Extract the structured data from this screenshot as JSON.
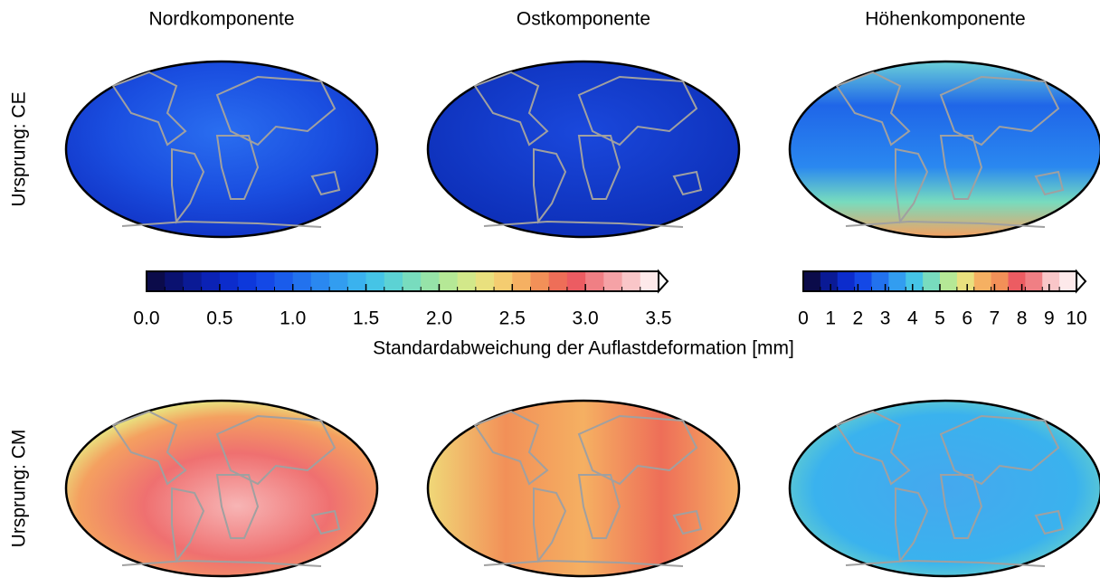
{
  "columns": [
    "Nordkomponente",
    "Ostkomponente",
    "Höhenkomponente"
  ],
  "rows": [
    "Ursprung: CE",
    "Ursprung: CM"
  ],
  "colorbars": [
    {
      "lim": [
        0,
        3.5
      ],
      "ticks": [
        {
          "value": 0,
          "label": "0.0"
        },
        0.5,
        {
          "value": 1,
          "label": "1.0"
        },
        1.5,
        {
          "value": 2,
          "label": "2.0"
        },
        2.5,
        {
          "value": 3,
          "label": "3.0"
        },
        3.5
      ],
      "colors": [
        "#0b0b4a",
        "#0a1170",
        "#0a1a95",
        "#0b22b5",
        "#0c2ccc",
        "#0d38db",
        "#1448e6",
        "#1a5ceb",
        "#2272ee",
        "#2a88f0",
        "#329df0",
        "#3ab2ee",
        "#45c4e6",
        "#5cd2d4",
        "#78dcbe",
        "#96e3a8",
        "#b5e896",
        "#d2e88a",
        "#e9e07e",
        "#f4cc70",
        "#f5b062",
        "#f29058",
        "#ee6e58",
        "#ec5c62",
        "#f07f84",
        "#f5a2a6",
        "#f9c6c8",
        "#fde9ea"
      ]
    },
    {
      "lim": [
        0,
        10
      ],
      "ticks": [
        0,
        1,
        2,
        3,
        4,
        5,
        6,
        7,
        8,
        9,
        10
      ],
      "colors": [
        "#0b0b4a",
        "#0a1a95",
        "#0c2ccc",
        "#1448e6",
        "#2272ee",
        "#329df0",
        "#45c4e6",
        "#78dcbe",
        "#b5e896",
        "#e9e07e",
        "#f5b062",
        "#f29058",
        "#ec5c62",
        "#f07f84",
        "#f9c6c8",
        "#fde9ea"
      ]
    }
  ],
  "colorbar_label": "Standardabweichung der Auflastdeformation [mm]"
}
